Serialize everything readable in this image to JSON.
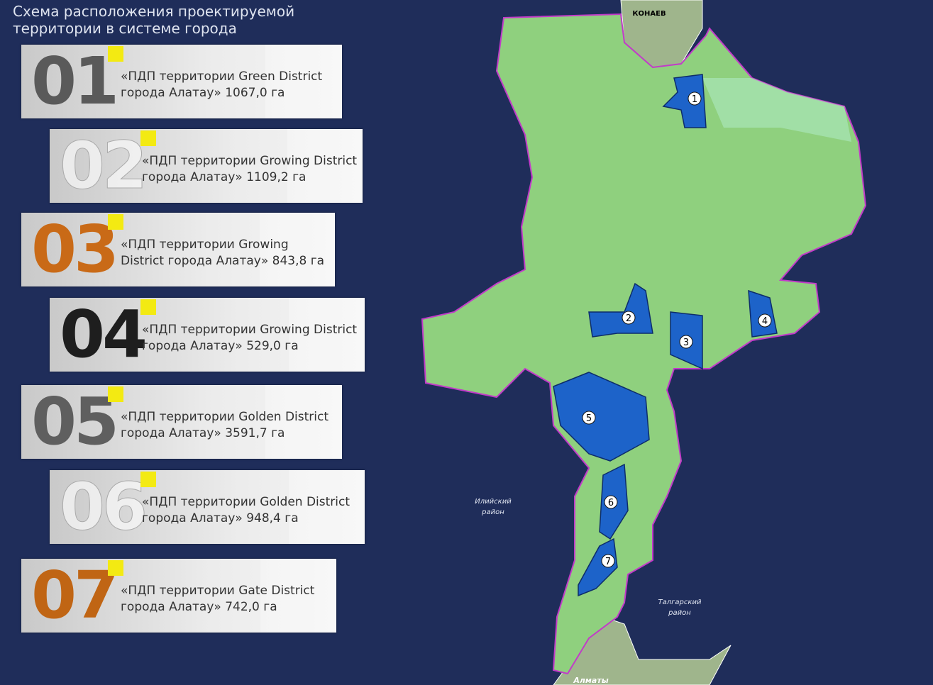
{
  "header": {
    "title_lines": [
      "Схема расположения проектируемой",
      "территории в системе города"
    ]
  },
  "cards": [
    {
      "number": "01",
      "lines": [
        "«ПДП территории Green District",
        "города Алатау» 1067,0 га"
      ]
    },
    {
      "number": "02",
      "lines": [
        "«ПДП территории Growing District",
        "города Алатау» 1109,2 га"
      ]
    },
    {
      "number": "03",
      "lines": [
        "«ПДП территории Growing",
        "District города Алатау» 843,8 га"
      ]
    },
    {
      "number": "04",
      "lines": [
        "«ПДП территории Growing District",
        "города Алатау» 529,0 га"
      ]
    },
    {
      "number": "05",
      "lines": [
        "«ПДП территории Golden District",
        "города Алатау» 3591,7 га"
      ]
    },
    {
      "number": "06",
      "lines": [
        "«ПДП территории Golden District",
        "города Алатау» 948,4 га"
      ]
    },
    {
      "number": "07",
      "lines": [
        "«ПДП территории Gate District",
        "города Алатау» 742,0 га"
      ]
    }
  ],
  "map": {
    "city_top": "КОНАЕВ",
    "city_bottom": "Алматы",
    "district_left": [
      "Илийский",
      "район"
    ],
    "district_right": [
      "Талгарский",
      "район"
    ],
    "markers": [
      "1",
      "2",
      "3",
      "4",
      "5",
      "6",
      "7"
    ]
  }
}
